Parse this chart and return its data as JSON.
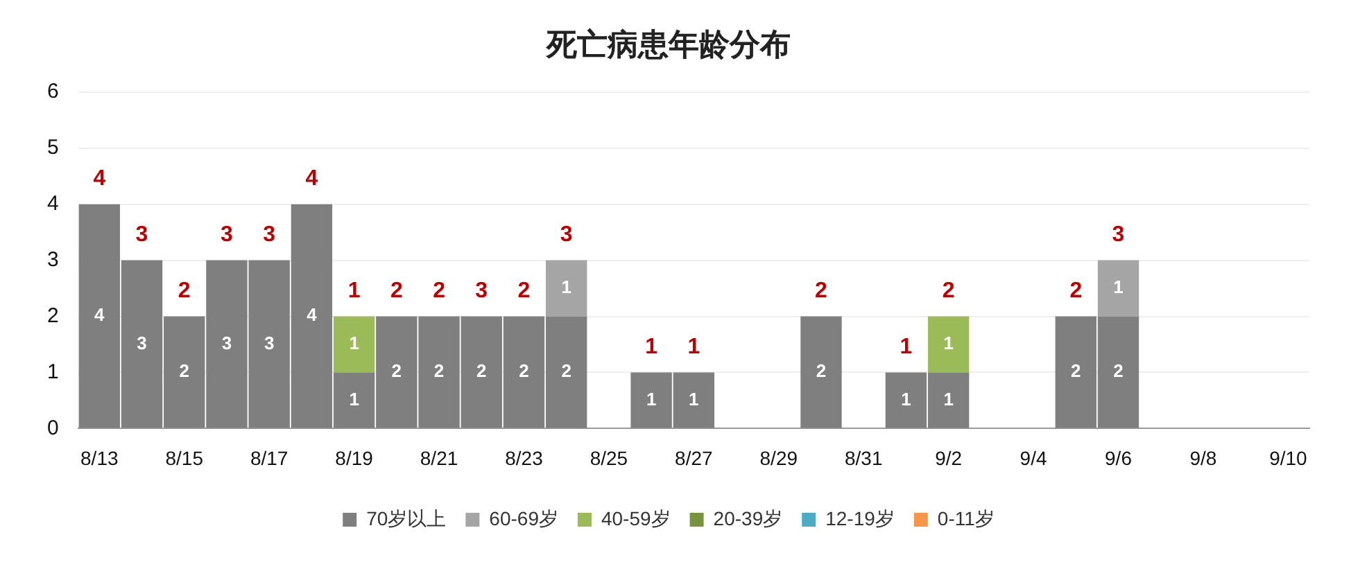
{
  "chart_data": {
    "type": "bar",
    "title": "死亡病患年龄分布",
    "stacked": true,
    "categories": [
      "8/13",
      null,
      "8/15",
      null,
      "8/17",
      null,
      "8/19",
      null,
      "8/21",
      null,
      "8/23",
      null,
      "8/25",
      null,
      "8/27",
      null,
      "8/29",
      null,
      "8/31",
      null,
      "9/2",
      null,
      "9/4",
      null,
      "9/6",
      null,
      "9/8",
      null,
      "9/10"
    ],
    "series": [
      {
        "name": "70岁以上",
        "color": "#7f7f7f",
        "values": [
          4,
          3,
          2,
          3,
          3,
          4,
          1,
          2,
          2,
          2,
          2,
          2,
          null,
          1,
          1,
          null,
          null,
          2,
          null,
          1,
          1,
          null,
          null,
          2,
          2,
          null,
          null,
          null,
          null
        ]
      },
      {
        "name": "60-69岁",
        "color": "#a5a5a5",
        "values": [
          null,
          null,
          null,
          null,
          null,
          null,
          null,
          null,
          null,
          null,
          null,
          1,
          null,
          null,
          null,
          null,
          null,
          null,
          null,
          null,
          null,
          null,
          null,
          null,
          1,
          null,
          null,
          null,
          null
        ]
      },
      {
        "name": "40-59岁",
        "color": "#9bbb59",
        "values": [
          null,
          null,
          null,
          null,
          null,
          null,
          1,
          null,
          null,
          null,
          null,
          null,
          null,
          null,
          null,
          null,
          null,
          null,
          null,
          null,
          1,
          null,
          null,
          null,
          null,
          null,
          null,
          null,
          null
        ]
      },
      {
        "name": "20-39岁",
        "color": "#77933c",
        "values": [
          null,
          null,
          null,
          null,
          null,
          null,
          null,
          null,
          null,
          null,
          null,
          null,
          null,
          null,
          null,
          null,
          null,
          null,
          null,
          null,
          null,
          null,
          null,
          null,
          null,
          null,
          null,
          null,
          null
        ]
      },
      {
        "name": "12-19岁",
        "color": "#4bacc6",
        "values": [
          null,
          null,
          null,
          null,
          null,
          null,
          null,
          null,
          null,
          null,
          null,
          null,
          null,
          null,
          null,
          null,
          null,
          null,
          null,
          null,
          null,
          null,
          null,
          null,
          null,
          null,
          null,
          null,
          null
        ]
      },
      {
        "name": "0-11岁",
        "color": "#f79646",
        "values": [
          null,
          null,
          null,
          null,
          null,
          null,
          null,
          null,
          null,
          null,
          null,
          null,
          null,
          null,
          null,
          null,
          null,
          null,
          null,
          null,
          null,
          null,
          null,
          null,
          null,
          null,
          null,
          null,
          null
        ]
      }
    ],
    "totals": [
      "4",
      "3",
      "2",
      "3",
      "3",
      "4",
      "1",
      "2",
      "2",
      "3",
      "2",
      "3",
      null,
      "1",
      "1",
      null,
      null,
      "2",
      null,
      "1",
      "2",
      null,
      null,
      "2",
      "3",
      null,
      null,
      null,
      null
    ],
    "ylim": [
      0,
      6
    ],
    "yticks": [
      0,
      1,
      2,
      3,
      4,
      5,
      6
    ],
    "grid": "y",
    "legend": "bottom",
    "data_labels": true
  }
}
